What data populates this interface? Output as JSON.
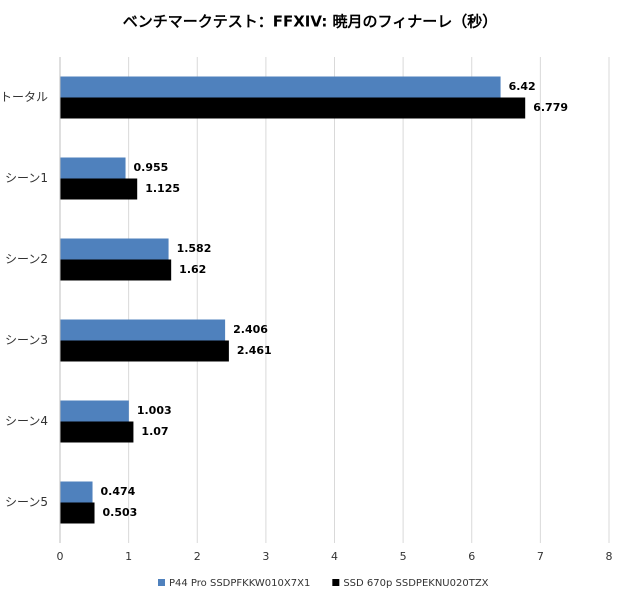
{
  "chart_data": {
    "type": "hbar",
    "title": "ベンチマークテスト：FFXIV: 暁月のフィナーレ（秒）",
    "categories": [
      "トータル",
      "シーン1",
      "シーン2",
      "シーン3",
      "シーン4",
      "シーン5"
    ],
    "series": [
      {
        "name": "P44 Pro SSDPFKKW010X7X1",
        "color": "#4f81bd",
        "values": [
          6.42,
          0.955,
          1.582,
          2.406,
          1.003,
          0.474
        ]
      },
      {
        "name": "SSD 670p SSDPEKNU020TZX",
        "color": "#000000",
        "values": [
          6.779,
          1.125,
          1.62,
          2.461,
          1.07,
          0.503
        ]
      }
    ],
    "xlim": [
      0,
      8
    ],
    "xticks": [
      0,
      1,
      2,
      3,
      4,
      5,
      6,
      7,
      8
    ],
    "grid": true,
    "legend": "bottom"
  }
}
